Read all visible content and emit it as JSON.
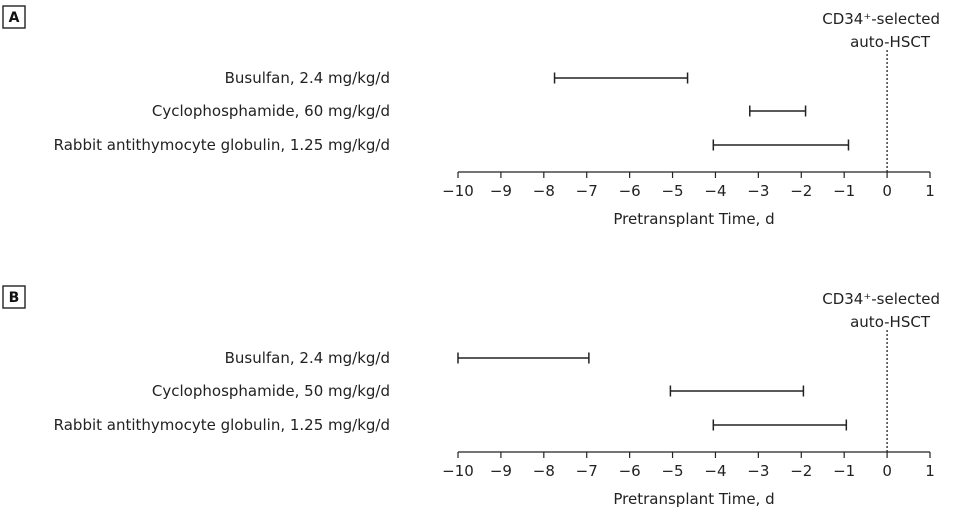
{
  "chart_data": [
    {
      "panel": "A",
      "type": "gantt",
      "xlabel": "Pretransplant Time, d",
      "xlim": [
        -10,
        1
      ],
      "xticks": [
        -10,
        -9,
        -8,
        -7,
        -6,
        -5,
        -4,
        -3,
        -2,
        -1,
        0,
        1
      ],
      "xtick_labels": [
        "−10",
        "−9",
        "−8",
        "−7",
        "−6",
        "−5",
        "−4",
        "−3",
        "−2",
        "−1",
        "0",
        "1"
      ],
      "annotation_line1": "CD34⁺-selected",
      "annotation_line2": "auto-HSCT",
      "reference_x": 0,
      "rows": [
        {
          "label": "Busulfan, 2.4 mg/kg/d",
          "start": -7.75,
          "end": -4.65
        },
        {
          "label": "Cyclophosphamide, 60 mg/kg/d",
          "start": -3.2,
          "end": -1.9
        },
        {
          "label": "Rabbit antithymocyte globulin, 1.25 mg/kg/d",
          "start": -4.05,
          "end": -0.9
        }
      ]
    },
    {
      "panel": "B",
      "type": "gantt",
      "xlabel": "Pretransplant Time, d",
      "xlim": [
        -10,
        1
      ],
      "xticks": [
        -10,
        -9,
        -8,
        -7,
        -6,
        -5,
        -4,
        -3,
        -2,
        -1,
        0,
        1
      ],
      "xtick_labels": [
        "−10",
        "−9",
        "−8",
        "−7",
        "−6",
        "−5",
        "−4",
        "−3",
        "−2",
        "−1",
        "0",
        "1"
      ],
      "annotation_line1": "CD34⁺-selected",
      "annotation_line2": "auto-HSCT",
      "reference_x": 0,
      "rows": [
        {
          "label": "Busulfan, 2.4 mg/kg/d",
          "start": -10,
          "end": -6.95
        },
        {
          "label": "Cyclophosphamide, 50 mg/kg/d",
          "start": -5.05,
          "end": -1.95
        },
        {
          "label": "Rabbit antithymocyte globulin, 1.25 mg/kg/d",
          "start": -4.05,
          "end": -0.95
        }
      ]
    }
  ]
}
